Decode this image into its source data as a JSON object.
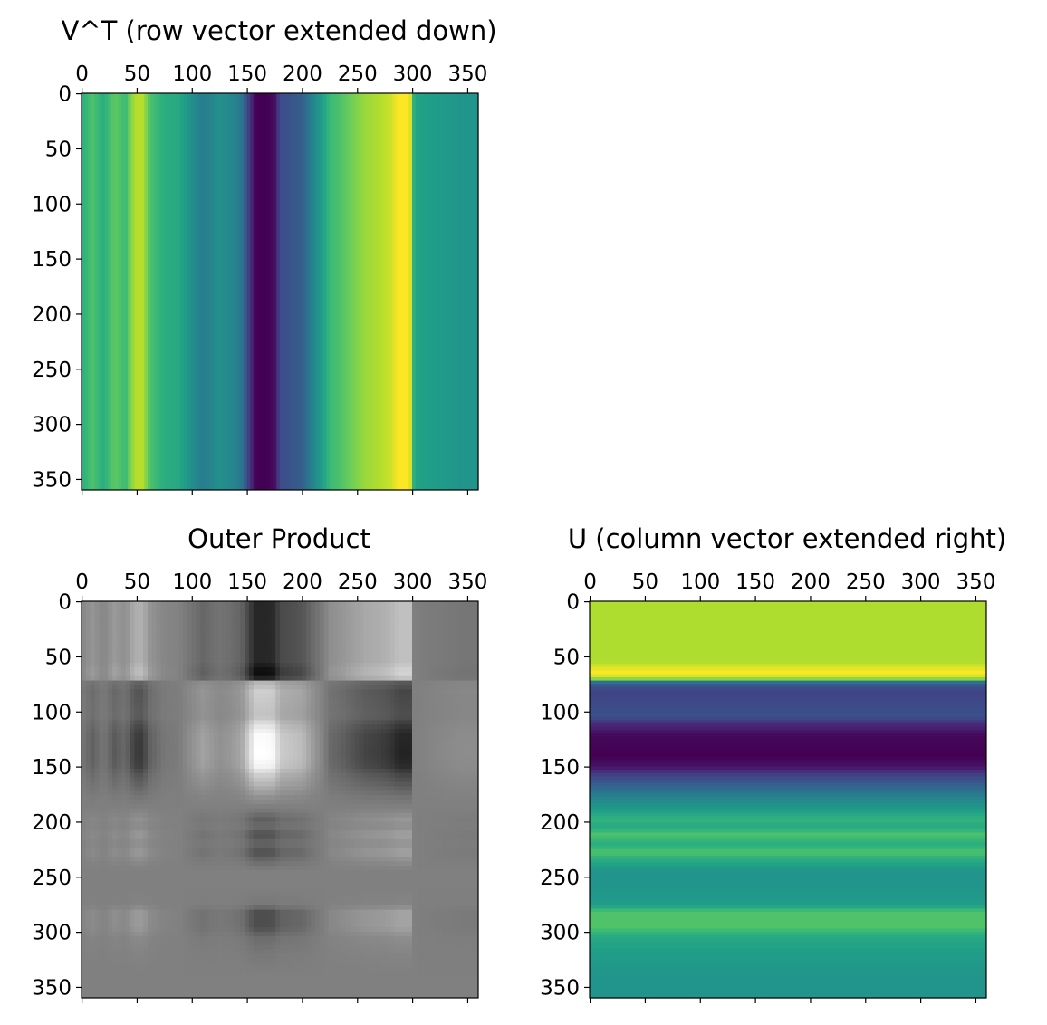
{
  "chart_data": [
    {
      "type": "heatmap",
      "id": "vt",
      "title": "V^T (row vector extended down)",
      "colormap": "viridis",
      "orientation": "columns",
      "extent": [
        0,
        360
      ],
      "xticks": [
        0,
        50,
        100,
        150,
        200,
        250,
        300,
        350
      ],
      "yticks": [
        0,
        50,
        100,
        150,
        200,
        250,
        300,
        350
      ],
      "xlim": [
        0,
        359
      ],
      "ylim": [
        0,
        359
      ],
      "xtick_position": "top",
      "profile": [
        [
          0,
          0.62
        ],
        [
          10,
          0.72
        ],
        [
          20,
          0.62
        ],
        [
          30,
          0.75
        ],
        [
          40,
          0.68
        ],
        [
          48,
          0.88
        ],
        [
          55,
          0.9
        ],
        [
          62,
          0.72
        ],
        [
          75,
          0.62
        ],
        [
          88,
          0.6
        ],
        [
          100,
          0.5
        ],
        [
          110,
          0.42
        ],
        [
          125,
          0.5
        ],
        [
          135,
          0.47
        ],
        [
          145,
          0.4
        ],
        [
          152,
          0.18
        ],
        [
          158,
          0.0
        ],
        [
          168,
          0.0
        ],
        [
          175,
          0.03
        ],
        [
          180,
          0.23
        ],
        [
          192,
          0.27
        ],
        [
          200,
          0.3
        ],
        [
          210,
          0.45
        ],
        [
          218,
          0.55
        ],
        [
          226,
          0.68
        ],
        [
          236,
          0.72
        ],
        [
          245,
          0.78
        ],
        [
          258,
          0.85
        ],
        [
          270,
          0.88
        ],
        [
          280,
          0.92
        ],
        [
          288,
          1.0
        ],
        [
          298,
          1.0
        ],
        [
          302,
          0.58
        ],
        [
          320,
          0.55
        ],
        [
          345,
          0.52
        ],
        [
          359,
          0.52
        ]
      ]
    },
    {
      "type": "heatmap",
      "id": "outer",
      "title": "Outer Product",
      "colormap": "gray",
      "extent": [
        0,
        360
      ],
      "xticks": [
        0,
        50,
        100,
        150,
        200,
        250,
        300,
        350
      ],
      "yticks": [
        0,
        50,
        100,
        150,
        200,
        250,
        300,
        350
      ],
      "xlim": [
        0,
        359
      ],
      "ylim": [
        0,
        359
      ],
      "xtick_position": "top"
    },
    {
      "type": "heatmap",
      "id": "u",
      "title": "U (column vector extended right)",
      "colormap": "viridis",
      "orientation": "rows",
      "extent": [
        0,
        360
      ],
      "xticks": [
        0,
        50,
        100,
        150,
        200,
        250,
        300,
        350
      ],
      "yticks": [
        0,
        50,
        100,
        150,
        200,
        250,
        300,
        350
      ],
      "xlim": [
        0,
        359
      ],
      "ylim": [
        0,
        359
      ],
      "xtick_position": "top",
      "profile": [
        [
          0,
          0.88
        ],
        [
          55,
          0.88
        ],
        [
          60,
          0.95
        ],
        [
          65,
          1.0
        ],
        [
          70,
          0.9
        ],
        [
          74,
          0.3
        ],
        [
          82,
          0.2
        ],
        [
          95,
          0.23
        ],
        [
          105,
          0.25
        ],
        [
          112,
          0.12
        ],
        [
          122,
          0.02
        ],
        [
          140,
          0.0
        ],
        [
          150,
          0.05
        ],
        [
          158,
          0.2
        ],
        [
          168,
          0.32
        ],
        [
          178,
          0.45
        ],
        [
          190,
          0.55
        ],
        [
          198,
          0.65
        ],
        [
          205,
          0.6
        ],
        [
          212,
          0.72
        ],
        [
          220,
          0.62
        ],
        [
          228,
          0.72
        ],
        [
          236,
          0.6
        ],
        [
          245,
          0.52
        ],
        [
          260,
          0.52
        ],
        [
          276,
          0.55
        ],
        [
          282,
          0.72
        ],
        [
          296,
          0.72
        ],
        [
          305,
          0.6
        ],
        [
          320,
          0.55
        ],
        [
          340,
          0.52
        ],
        [
          359,
          0.52
        ]
      ]
    }
  ]
}
